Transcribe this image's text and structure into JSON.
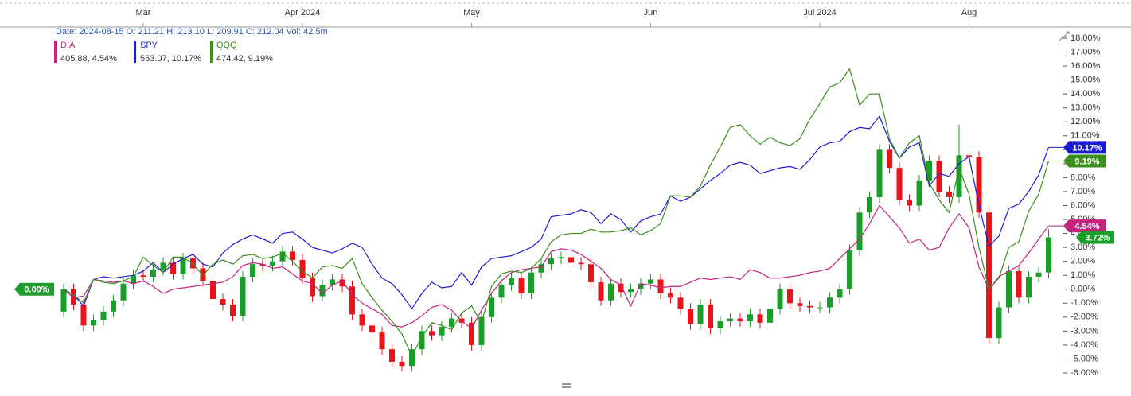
{
  "chart_data": {
    "type": "candlestick",
    "header": "Date: 2024-08-15 O: 211.21 H: 213.10 L: 209.91 C: 212.04 Vol: 42.5m",
    "categories": [
      null,
      null,
      null,
      null,
      null,
      null,
      null,
      null,
      "Mar",
      null,
      null,
      null,
      null,
      null,
      null,
      null,
      null,
      null,
      null,
      null,
      null,
      null,
      null,
      null,
      "Apr 2024",
      null,
      null,
      null,
      null,
      null,
      null,
      null,
      null,
      null,
      null,
      null,
      null,
      null,
      null,
      null,
      null,
      "May",
      null,
      null,
      null,
      null,
      null,
      null,
      null,
      null,
      null,
      null,
      null,
      null,
      null,
      null,
      null,
      null,
      null,
      "Jun",
      null,
      null,
      null,
      null,
      null,
      null,
      null,
      null,
      null,
      null,
      null,
      null,
      null,
      null,
      null,
      null,
      "Jul 2024",
      null,
      null,
      null,
      null,
      null,
      null,
      null,
      null,
      null,
      null,
      null,
      null,
      null,
      null,
      "Aug",
      null,
      null,
      null,
      null,
      null,
      null,
      null,
      null
    ],
    "ylim": [
      -6,
      18
    ],
    "yticks": [
      {
        "value": 18,
        "label": "18.00%"
      },
      {
        "value": 17,
        "label": "17.00%"
      },
      {
        "value": 16,
        "label": "16.00%"
      },
      {
        "value": 15,
        "label": "15.00%"
      },
      {
        "value": 14,
        "label": "14.00%"
      },
      {
        "value": 13,
        "label": "13.00%"
      },
      {
        "value": 12,
        "label": "12.00%"
      },
      {
        "value": 11,
        "label": "11.00%"
      },
      {
        "value": 10,
        "label": "10.00%"
      },
      {
        "value": 9,
        "label": "9.00%"
      },
      {
        "value": 8,
        "label": "8.00%"
      },
      {
        "value": 7,
        "label": "7.00%"
      },
      {
        "value": 6,
        "label": "6.00%"
      },
      {
        "value": 5,
        "label": "5.00%"
      },
      {
        "value": 4,
        "label": "4.00%"
      },
      {
        "value": 3,
        "label": "3.00%"
      },
      {
        "value": 2,
        "label": "2.00%"
      },
      {
        "value": 1,
        "label": "1.00%"
      },
      {
        "value": 0,
        "label": "0.00%"
      },
      {
        "value": -1,
        "label": "-1.00%"
      },
      {
        "value": -2,
        "label": "-2.00%"
      },
      {
        "value": -3,
        "label": "-3.00%"
      },
      {
        "value": -4,
        "label": "-4.00%"
      },
      {
        "value": -5,
        "label": "-5.00%"
      },
      {
        "value": -6,
        "label": "-6.00%"
      }
    ],
    "start_tag": "0.00%",
    "start_color": "#1f9e2f",
    "candles": {
      "up_color": "#1a9e2a",
      "down_color": "#e8141a",
      "tag": "3.72%",
      "open": [
        -1.6,
        0.0,
        -1.1,
        -2.6,
        -2.2,
        -1.6,
        -0.8,
        0.4,
        1.0,
        0.9,
        1.4,
        1.9,
        1.1,
        2.2,
        1.5,
        0.6,
        -0.7,
        -1.1,
        -1.9,
        0.9,
        1.8,
        1.7,
        2.0,
        2.7,
        2.1,
        0.8,
        -0.5,
        0.3,
        0.7,
        0.2,
        -1.8,
        -2.6,
        -3.1,
        -4.3,
        -5.2,
        -5.5,
        -4.3,
        -3.0,
        -3.3,
        -2.7,
        -2.1,
        -2.4,
        -4.0,
        -2.0,
        -0.6,
        0.3,
        0.8,
        -0.3,
        1.2,
        1.8,
        2.2,
        2.3,
        1.9,
        1.8,
        0.5,
        -0.8,
        0.4,
        -0.2,
        0.0,
        0.4,
        0.7,
        -0.3,
        -0.6,
        -1.4,
        -2.5,
        -1.1,
        -2.8,
        -2.3,
        -2.1,
        -2.3,
        -1.8,
        -2.4,
        -1.4,
        0.0,
        -1.0,
        -1.2,
        -1.3,
        -1.3,
        -0.6,
        0.0,
        2.8,
        5.5,
        6.6,
        10.0,
        8.7,
        6.4,
        6.0,
        7.8,
        9.2,
        7.0,
        6.6,
        9.6,
        9.5,
        5.5,
        -3.5,
        -1.3,
        1.3,
        -0.6,
        0.9,
        1.2
      ],
      "high": [
        0.4,
        0.4,
        -0.7,
        -1.8,
        -1.2,
        -0.4,
        0.8,
        1.4,
        1.4,
        1.8,
        2.3,
        2.3,
        2.6,
        2.6,
        1.9,
        1.0,
        -0.3,
        -0.7,
        1.3,
        2.2,
        2.2,
        2.4,
        3.1,
        3.1,
        2.5,
        1.2,
        0.7,
        1.1,
        1.1,
        0.6,
        -1.4,
        -2.2,
        -2.7,
        -3.9,
        -4.8,
        -3.9,
        -2.6,
        -2.6,
        -2.3,
        -1.7,
        -1.7,
        -2.0,
        -1.6,
        -0.2,
        0.7,
        1.2,
        1.2,
        1.6,
        2.2,
        2.6,
        2.7,
        2.7,
        2.3,
        2.2,
        0.9,
        0.8,
        0.8,
        0.4,
        0.8,
        1.1,
        1.1,
        0.1,
        -0.2,
        -1.0,
        -0.7,
        -0.7,
        -1.9,
        -1.7,
        -1.7,
        -1.4,
        -1.4,
        -1.0,
        0.4,
        0.4,
        -0.6,
        -0.8,
        -0.9,
        -0.2,
        0.4,
        3.2,
        5.9,
        7.0,
        10.4,
        10.4,
        9.1,
        6.8,
        8.2,
        9.6,
        9.6,
        7.4,
        11.8,
        10.0,
        9.9,
        5.9,
        -0.9,
        1.7,
        1.7,
        1.3,
        1.6,
        4.3
      ],
      "low": [
        -2.0,
        -1.5,
        -3.0,
        -3.0,
        -2.6,
        -2.0,
        -1.2,
        0.0,
        0.5,
        0.5,
        1.0,
        0.7,
        0.7,
        1.1,
        0.2,
        -1.1,
        -1.5,
        -2.3,
        -2.3,
        0.5,
        1.3,
        1.3,
        1.6,
        1.7,
        0.4,
        -0.9,
        -0.9,
        -0.1,
        -0.2,
        -2.2,
        -3.0,
        -3.5,
        -4.7,
        -5.6,
        -5.9,
        -5.9,
        -4.7,
        -3.7,
        -3.7,
        -3.1,
        -2.8,
        -4.4,
        -4.4,
        -2.4,
        -1.0,
        -0.1,
        -0.7,
        -0.7,
        0.8,
        1.4,
        1.8,
        1.5,
        1.4,
        0.1,
        -1.2,
        -1.2,
        -0.6,
        -0.6,
        -0.4,
        0.0,
        -0.7,
        -1.0,
        -1.8,
        -2.9,
        -2.9,
        -3.2,
        -3.2,
        -2.7,
        -2.7,
        -2.7,
        -2.8,
        -2.8,
        -1.8,
        -1.4,
        -1.6,
        -1.7,
        -1.7,
        -1.7,
        -1.0,
        -0.4,
        2.4,
        5.1,
        6.2,
        8.3,
        6.0,
        5.6,
        5.6,
        7.4,
        6.6,
        6.2,
        6.2,
        9.1,
        5.1,
        -3.9,
        -3.9,
        -1.7,
        -1.0,
        -1.0,
        0.5,
        0.8
      ],
      "close": [
        0.0,
        -1.1,
        -2.6,
        -2.2,
        -1.6,
        -0.8,
        0.4,
        1.0,
        0.9,
        1.4,
        1.9,
        1.1,
        2.2,
        1.5,
        0.6,
        -0.7,
        -1.1,
        -1.9,
        0.9,
        1.8,
        1.7,
        2.0,
        2.7,
        2.1,
        0.8,
        -0.5,
        0.3,
        0.7,
        0.2,
        -1.8,
        -2.6,
        -3.1,
        -4.3,
        -5.2,
        -5.5,
        -4.3,
        -3.0,
        -3.3,
        -2.7,
        -2.1,
        -2.4,
        -4.0,
        -2.0,
        -0.6,
        0.3,
        0.8,
        -0.3,
        1.2,
        1.8,
        2.2,
        2.3,
        1.9,
        1.8,
        0.5,
        -0.8,
        0.4,
        -0.2,
        0.0,
        0.4,
        0.7,
        -0.3,
        -0.6,
        -1.4,
        -2.5,
        -1.1,
        -2.8,
        -2.3,
        -2.1,
        -2.3,
        -1.8,
        -2.4,
        -1.4,
        0.0,
        -1.0,
        -1.2,
        -1.3,
        -1.3,
        -0.6,
        0.0,
        2.8,
        5.5,
        6.6,
        10.0,
        8.7,
        6.4,
        6.0,
        7.8,
        9.2,
        7.0,
        6.6,
        9.6,
        9.5,
        5.5,
        -3.5,
        -1.3,
        1.3,
        -0.6,
        0.9,
        1.2,
        3.72
      ]
    },
    "series": [
      {
        "name": "DIA",
        "color": "#c4237f",
        "legend_value": "405.88, 4.54%",
        "tag": "4.54%",
        "values": [
          0,
          -0.6,
          -0.5,
          0.7,
          0.6,
          0.5,
          0.6,
          0.4,
          0.6,
          0.2,
          -0.3,
          0.0,
          0.1,
          0.2,
          0.3,
          0.4,
          0.5,
          0.9,
          1.7,
          1.9,
          1.8,
          1.5,
          1.6,
          1.1,
          0.6,
          0.4,
          -0.3,
          0.3,
          0.6,
          -0.4,
          -1.0,
          -1.4,
          -1.8,
          -2.6,
          -2.7,
          -2.4,
          -1.9,
          -1.3,
          -1.1,
          -1.5,
          -2.3,
          -2.8,
          -1.5,
          -0.3,
          0.6,
          1.2,
          1.4,
          1.5,
          1.6,
          2.7,
          2.9,
          2.8,
          2.5,
          2.0,
          1.5,
          0.7,
          0.3,
          -1.2,
          0.4,
          0.3,
          0.1,
          0.2,
          0.2,
          0.5,
          0.8,
          0.7,
          0.8,
          0.9,
          0.7,
          1.4,
          1.2,
          0.8,
          0.8,
          0.9,
          1.0,
          1.2,
          1.3,
          1.5,
          2.2,
          2.9,
          3.6,
          4.7,
          6.0,
          5.2,
          4.4,
          3.3,
          3.6,
          2.8,
          3.0,
          4.4,
          5.4,
          4.4,
          1.6,
          0.0,
          0.9,
          1.3,
          1.7,
          2.6,
          3.6,
          4.54
        ]
      },
      {
        "name": "SPY",
        "color": "#1c1cd0",
        "legend_value": "553.07, 10.17%",
        "tag": "10.17%",
        "values": [
          0,
          -0.4,
          -1.2,
          0.7,
          0.9,
          0.8,
          0.9,
          1.0,
          1.3,
          1.9,
          1.2,
          1.8,
          2.2,
          2.5,
          1.8,
          1.6,
          2.6,
          3.2,
          3.6,
          3.9,
          3.6,
          3.3,
          4.0,
          4.1,
          3.6,
          3.0,
          2.8,
          2.6,
          2.9,
          3.3,
          3.0,
          1.8,
          0.8,
          0.4,
          -0.4,
          -1.4,
          -0.3,
          0.5,
          0.1,
          0.2,
          1.2,
          0.3,
          1.6,
          2.2,
          2.3,
          2.4,
          2.7,
          3.0,
          3.6,
          5.2,
          5.3,
          5.4,
          5.7,
          5.5,
          4.7,
          5.4,
          5.0,
          4.1,
          4.9,
          5.2,
          5.4,
          6.7,
          6.3,
          6.6,
          7.2,
          7.8,
          8.3,
          8.9,
          9.1,
          8.9,
          8.3,
          8.5,
          8.7,
          8.8,
          8.6,
          9.3,
          10.2,
          10.5,
          10.6,
          11.3,
          11.6,
          11.5,
          12.4,
          10.6,
          9.4,
          10.2,
          10.5,
          7.4,
          8.3,
          8.1,
          9.0,
          9.5,
          6.0,
          3.1,
          3.8,
          5.8,
          6.1,
          7.0,
          8.2,
          10.17
        ]
      },
      {
        "name": "QQQ",
        "color": "#3b8f1b",
        "legend_value": "474.42, 9.19%",
        "tag": "9.19%",
        "values": [
          0,
          -0.4,
          -1.0,
          0.7,
          0.5,
          0.4,
          0.6,
          0.9,
          2.3,
          1.7,
          1.2,
          2.3,
          2.3,
          1.8,
          1.0,
          1.8,
          2.1,
          1.8,
          2.4,
          2.5,
          2.2,
          2.3,
          2.6,
          2.0,
          1.3,
          0.8,
          1.6,
          1.7,
          1.5,
          2.2,
          0.4,
          -0.6,
          -1.5,
          -2.3,
          -3.2,
          -4.8,
          -3.4,
          -2.4,
          -2.6,
          -2.9,
          -1.7,
          -1.2,
          -2.4,
          0.2,
          1.1,
          1.3,
          1.2,
          1.5,
          2.2,
          3.4,
          3.9,
          4.0,
          4.0,
          4.3,
          4.1,
          4.1,
          4.2,
          4.4,
          3.9,
          4.2,
          4.7,
          6.7,
          6.7,
          6.6,
          7.4,
          8.9,
          10.2,
          11.6,
          11.8,
          11.0,
          10.4,
          10.9,
          10.5,
          10.3,
          10.8,
          12.2,
          13.3,
          14.5,
          14.8,
          15.8,
          13.2,
          14.0,
          14.0,
          10.8,
          9.4,
          10.5,
          11.0,
          7.6,
          6.4,
          5.5,
          8.7,
          6.8,
          3.0,
          0.0,
          0.8,
          3.0,
          3.4,
          5.6,
          6.8,
          9.19
        ]
      }
    ]
  }
}
